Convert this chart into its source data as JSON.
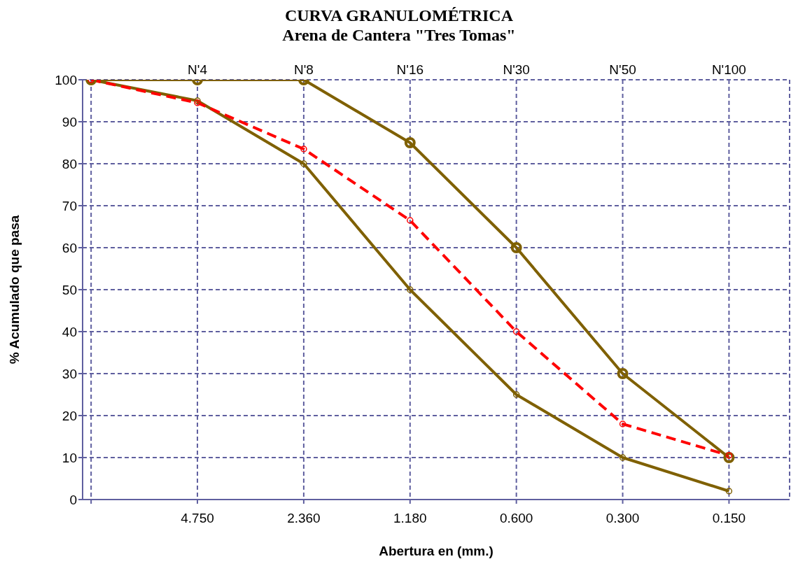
{
  "chart_data": {
    "type": "line",
    "title": "CURVA GRANULOMÉTRICA",
    "subtitle": "Arena de Cantera \"Tres Tomas\"",
    "xlabel": "Abertura en (mm.)",
    "ylabel": "% Acumulado que pasa",
    "categories": [
      null,
      "4.750",
      "2.360",
      "1.180",
      "0.600",
      "0.300",
      "0.150"
    ],
    "series": [
      {
        "color": "#7f6000",
        "values": [
          100,
          100,
          100,
          85,
          60,
          30,
          10
        ]
      },
      {
        "color": "#7f6000",
        "values": [
          100,
          95,
          80,
          50,
          25,
          10,
          2
        ]
      },
      {
        "color": "#ff0000",
        "values": [
          100,
          94.5,
          83.5,
          66.5,
          40,
          18,
          10.5
        ],
        "line_style": "dashed"
      }
    ],
    "annotations": [
      "N'4",
      "N'8",
      "N'16",
      "N'30",
      "N'50",
      "N'100"
    ],
    "ylim": [
      0,
      100
    ],
    "yticks": [
      0,
      10,
      20,
      30,
      40,
      50,
      60,
      70,
      80,
      90,
      100
    ],
    "grid": true,
    "legend": false,
    "marker": "circle",
    "line_style": "solid"
  }
}
